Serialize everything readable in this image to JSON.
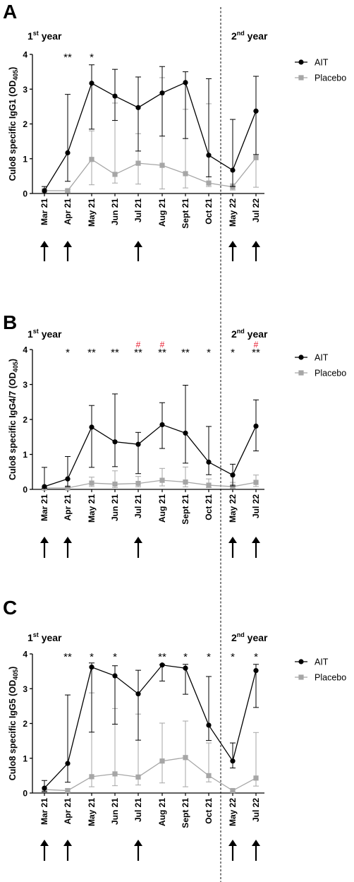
{
  "colors": {
    "ait": "#000000",
    "placebo": "#a6a6a6",
    "hash": "#e8192c"
  },
  "panels": [
    {
      "letter": "A",
      "year1": "1",
      "year2": "2",
      "year_sup1": "st",
      "year_sup2": "nd",
      "year_word": " year",
      "ylabel_main": "Culo8 specific IgG1 (OD",
      "ylabel_sub": "405",
      "ylabel_end": ")",
      "legend": [
        "AIT",
        "Placebo"
      ],
      "stars": [
        "",
        "**",
        "*",
        "",
        "",
        "",
        "",
        "",
        "",
        ""
      ],
      "hashes": [
        "",
        "",
        "",
        "",
        "",
        "",
        "",
        "",
        "",
        ""
      ]
    },
    {
      "letter": "B",
      "year1": "1",
      "year2": "2",
      "year_sup1": "st",
      "year_sup2": "nd",
      "year_word": " year",
      "ylabel_main": "Culo8 specific IgG4/7 (OD",
      "ylabel_sub": "405",
      "ylabel_end": ")",
      "legend": [
        "AIT",
        "Placebo"
      ],
      "stars": [
        "",
        "*",
        "**",
        "**",
        "**",
        "**",
        "**",
        "*",
        "*",
        "**"
      ],
      "hashes": [
        "",
        "",
        "",
        "",
        "#",
        "#",
        "",
        "",
        "",
        "#"
      ]
    },
    {
      "letter": "C",
      "year1": "1",
      "year2": "2",
      "year_sup1": "st",
      "year_sup2": "nd",
      "year_word": " year",
      "ylabel_main": "Culo8 specific IgG5 (OD",
      "ylabel_sub": "405",
      "ylabel_end": ")",
      "legend": [
        "AIT",
        "Placebo"
      ],
      "stars": [
        "",
        "**",
        "*",
        "*",
        "",
        "**",
        "*",
        "*",
        "*",
        "*"
      ],
      "hashes": [
        "",
        "",
        "",
        "",
        "",
        "",
        "",
        "",
        "",
        ""
      ]
    }
  ],
  "chart_data": [
    {
      "type": "line",
      "categories": [
        "Mar 21",
        "Apr 21",
        "May 21",
        "Jun 21",
        "Jul 21",
        "Aug 21",
        "Sept 21",
        "Oct 21",
        "May 22",
        "Jul 22"
      ],
      "yticks": [
        0,
        1,
        2,
        3,
        4
      ],
      "ylim": [
        0,
        4
      ],
      "arrows_at": [
        "Mar 21",
        "Apr 21",
        "Jul 21",
        "May 22",
        "Jul 22"
      ],
      "series": [
        {
          "name": "AIT",
          "values": [
            0.08,
            1.17,
            3.17,
            2.8,
            2.47,
            2.89,
            3.19,
            1.1,
            0.67,
            2.37
          ],
          "err_low": [
            0.0,
            0.35,
            1.85,
            2.1,
            1.22,
            1.65,
            1.58,
            0.48,
            0.2,
            1.12
          ],
          "err_high": [
            0.2,
            2.85,
            3.7,
            3.57,
            3.35,
            3.65,
            3.5,
            3.3,
            2.13,
            3.37
          ]
        },
        {
          "name": "Placebo",
          "values": [
            0.08,
            0.08,
            0.98,
            0.55,
            0.87,
            0.81,
            0.57,
            0.3,
            0.19,
            1.03
          ],
          "err_low": [
            0.04,
            0.04,
            0.25,
            0.3,
            0.27,
            0.13,
            0.16,
            0.2,
            0.1,
            0.18
          ],
          "err_high": [
            0.12,
            0.12,
            1.8,
            2.6,
            1.72,
            3.33,
            2.42,
            2.58,
            0.28,
            2.37
          ]
        }
      ]
    },
    {
      "type": "line",
      "categories": [
        "Mar 21",
        "Apr 21",
        "May 21",
        "Jun 21",
        "Jul 21",
        "Aug 21",
        "Sept 21",
        "Oct 21",
        "May 22",
        "Jul 22"
      ],
      "yticks": [
        0,
        1,
        2,
        3,
        4
      ],
      "ylim": [
        0,
        4
      ],
      "arrows_at": [
        "Mar 21",
        "Apr 21",
        "Jul 21",
        "May 22",
        "Jul 22"
      ],
      "series": [
        {
          "name": "AIT",
          "values": [
            0.08,
            0.3,
            1.78,
            1.36,
            1.29,
            1.85,
            1.61,
            0.78,
            0.41,
            1.81
          ],
          "err_low": [
            0.03,
            0.08,
            0.63,
            0.65,
            0.45,
            1.17,
            0.75,
            0.42,
            0.1,
            1.1
          ],
          "err_high": [
            0.63,
            0.94,
            2.4,
            2.73,
            1.63,
            2.48,
            2.98,
            1.8,
            0.72,
            2.56
          ]
        },
        {
          "name": "Placebo",
          "values": [
            0.04,
            0.04,
            0.18,
            0.15,
            0.17,
            0.26,
            0.21,
            0.12,
            0.08,
            0.2
          ],
          "err_low": [
            0.02,
            0.02,
            0.08,
            0.05,
            0.07,
            0.1,
            0.07,
            0.05,
            0.03,
            0.08
          ],
          "err_high": [
            0.06,
            0.06,
            0.35,
            0.53,
            0.37,
            0.6,
            0.64,
            0.3,
            0.2,
            0.41
          ]
        }
      ]
    },
    {
      "type": "line",
      "categories": [
        "Mar 21",
        "Apr 21",
        "May 21",
        "Jun 21",
        "Jul 21",
        "Aug 21",
        "Sept 21",
        "Oct 21",
        "May 22",
        "Jul 22"
      ],
      "yticks": [
        0,
        1,
        2,
        3,
        4
      ],
      "ylim": [
        0,
        4
      ],
      "arrows_at": [
        "Mar 21",
        "Apr 21",
        "Jul 21",
        "May 22",
        "Jul 22"
      ],
      "series": [
        {
          "name": "AIT",
          "values": [
            0.14,
            0.85,
            3.62,
            3.37,
            2.85,
            3.68,
            3.59,
            1.95,
            0.92,
            3.52
          ],
          "err_low": [
            0.04,
            0.31,
            1.75,
            1.98,
            1.52,
            3.22,
            2.84,
            1.51,
            0.72,
            2.46
          ],
          "err_high": [
            0.36,
            2.82,
            3.74,
            3.66,
            3.53,
            3.7,
            3.7,
            3.35,
            1.44,
            3.7
          ]
        },
        {
          "name": "Placebo",
          "values": [
            0.1,
            0.07,
            0.47,
            0.55,
            0.46,
            0.92,
            1.02,
            0.5,
            0.07,
            0.43
          ],
          "err_low": [
            0.04,
            0.03,
            0.18,
            0.21,
            0.23,
            0.29,
            0.18,
            0.32,
            0.03,
            0.2
          ],
          "err_high": [
            0.16,
            0.12,
            2.88,
            2.43,
            2.27,
            2.01,
            2.07,
            1.44,
            0.11,
            1.74
          ]
        }
      ]
    }
  ]
}
